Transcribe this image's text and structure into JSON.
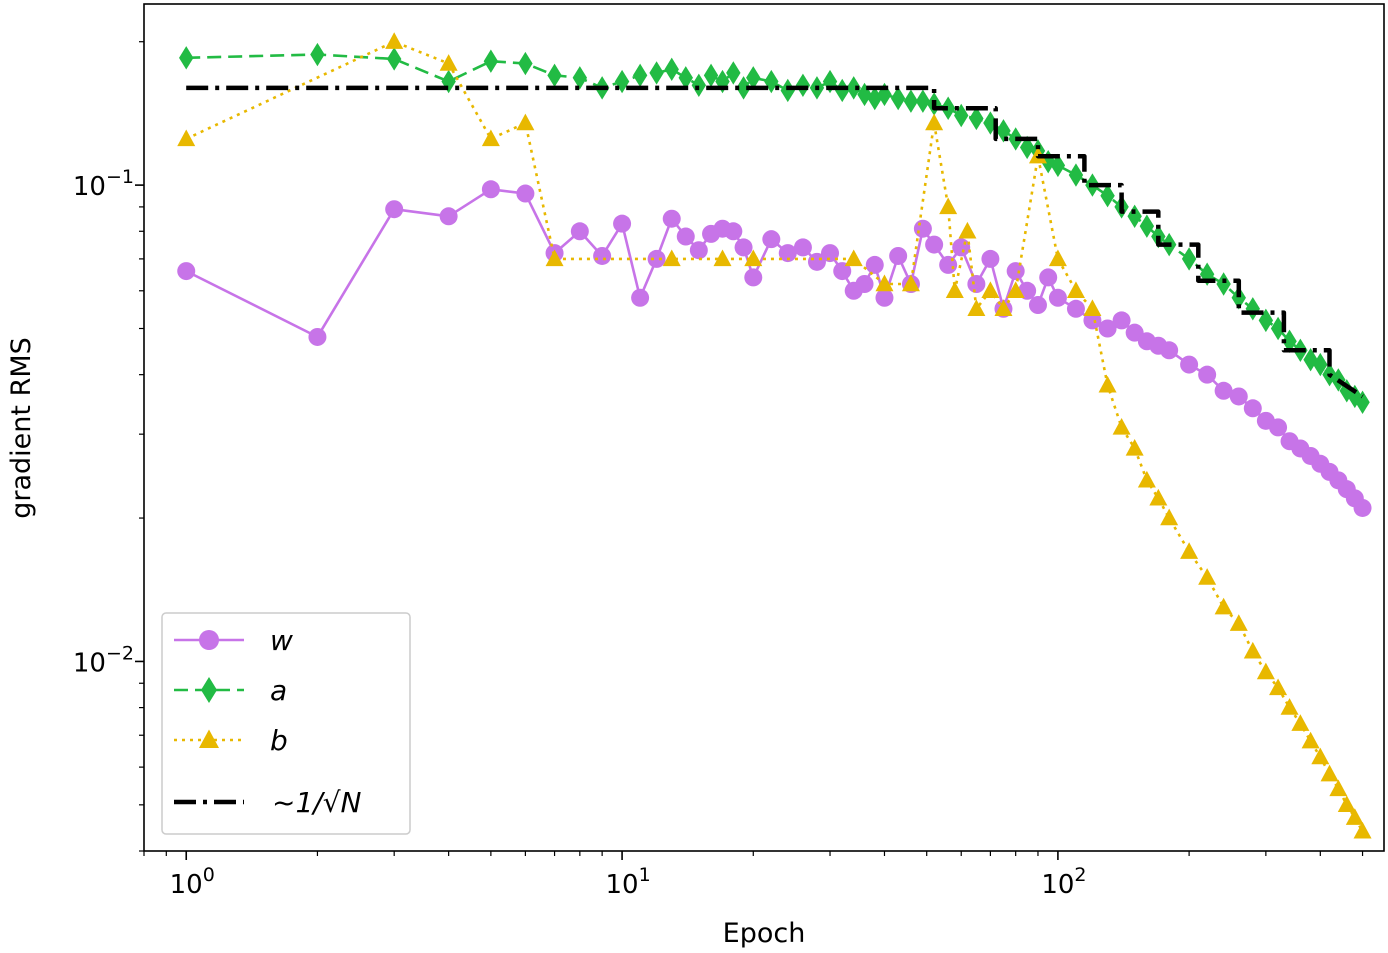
{
  "chart_data": {
    "type": "line",
    "xlabel": "Epoch",
    "ylabel": "gradient RMS",
    "xscale": "log",
    "yscale": "log",
    "xlim": [
      0.8,
      560
    ],
    "ylim": [
      0.004,
      0.24
    ],
    "x_ticks": [
      {
        "base": "10",
        "exp": "0",
        "value": 1
      },
      {
        "base": "10",
        "exp": "1",
        "value": 10
      },
      {
        "base": "10",
        "exp": "2",
        "value": 100
      }
    ],
    "y_ticks": [
      {
        "base": "10",
        "exp": "−2",
        "value": 0.01
      },
      {
        "base": "10",
        "exp": "−1",
        "value": 0.1
      }
    ],
    "legend": {
      "placement": "lower-left",
      "entries": [
        {
          "label": "w",
          "series": "w"
        },
        {
          "label": "a",
          "series": "a"
        },
        {
          "label": "b",
          "series": "b"
        },
        {
          "label": "~1/√N",
          "series": "ref"
        }
      ]
    },
    "series": [
      {
        "name": "w",
        "color": "#c774e8",
        "marker": "circle",
        "linestyle": "solid",
        "x": [
          1,
          2,
          3,
          4,
          5,
          6,
          7,
          8,
          9,
          10,
          11,
          12,
          13,
          14,
          15,
          16,
          17,
          18,
          19,
          20,
          22,
          24,
          26,
          28,
          30,
          32,
          34,
          36,
          38,
          40,
          43,
          46,
          49,
          52,
          56,
          60,
          65,
          70,
          75,
          80,
          85,
          90,
          95,
          100,
          110,
          120,
          130,
          140,
          150,
          160,
          170,
          180,
          200,
          220,
          240,
          260,
          280,
          300,
          320,
          340,
          360,
          380,
          400,
          420,
          440,
          460,
          480,
          500
        ],
        "y": [
          0.066,
          0.048,
          0.089,
          0.086,
          0.098,
          0.096,
          0.072,
          0.08,
          0.071,
          0.083,
          0.058,
          0.07,
          0.085,
          0.078,
          0.073,
          0.079,
          0.081,
          0.08,
          0.074,
          0.064,
          0.077,
          0.072,
          0.074,
          0.069,
          0.072,
          0.066,
          0.06,
          0.062,
          0.068,
          0.058,
          0.071,
          0.062,
          0.081,
          0.075,
          0.068,
          0.074,
          0.062,
          0.07,
          0.055,
          0.066,
          0.06,
          0.056,
          0.064,
          0.058,
          0.055,
          0.052,
          0.05,
          0.052,
          0.049,
          0.047,
          0.046,
          0.045,
          0.042,
          0.04,
          0.037,
          0.036,
          0.034,
          0.032,
          0.031,
          0.029,
          0.028,
          0.027,
          0.026,
          0.025,
          0.024,
          0.023,
          0.022,
          0.021
        ]
      },
      {
        "name": "a",
        "color": "#22bb44",
        "marker": "diamond",
        "linestyle": "dashed",
        "x": [
          1,
          2,
          3,
          4,
          5,
          6,
          7,
          8,
          9,
          10,
          11,
          12,
          13,
          14,
          15,
          16,
          17,
          18,
          19,
          20,
          22,
          24,
          26,
          28,
          30,
          32,
          34,
          36,
          38,
          40,
          43,
          46,
          49,
          52,
          56,
          60,
          65,
          70,
          75,
          80,
          85,
          90,
          95,
          100,
          110,
          120,
          130,
          140,
          150,
          160,
          170,
          180,
          200,
          220,
          240,
          260,
          280,
          300,
          320,
          340,
          360,
          380,
          400,
          420,
          440,
          460,
          480,
          500
        ],
        "y": [
          0.185,
          0.188,
          0.184,
          0.165,
          0.182,
          0.18,
          0.17,
          0.168,
          0.16,
          0.165,
          0.17,
          0.172,
          0.175,
          0.168,
          0.162,
          0.17,
          0.165,
          0.172,
          0.16,
          0.168,
          0.165,
          0.158,
          0.162,
          0.16,
          0.165,
          0.158,
          0.16,
          0.155,
          0.152,
          0.155,
          0.152,
          0.15,
          0.15,
          0.148,
          0.145,
          0.14,
          0.138,
          0.135,
          0.13,
          0.125,
          0.12,
          0.118,
          0.112,
          0.11,
          0.105,
          0.1,
          0.095,
          0.09,
          0.086,
          0.082,
          0.078,
          0.075,
          0.07,
          0.065,
          0.062,
          0.058,
          0.055,
          0.052,
          0.05,
          0.047,
          0.045,
          0.043,
          0.042,
          0.04,
          0.039,
          0.037,
          0.036,
          0.035
        ]
      },
      {
        "name": "b",
        "color": "#e8b800",
        "marker": "triangle",
        "linestyle": "dotted",
        "x": [
          1,
          3,
          4,
          5,
          6,
          7,
          13,
          17,
          20,
          34,
          40,
          46,
          52,
          56,
          58,
          62,
          65,
          70,
          75,
          80,
          90,
          100,
          110,
          120,
          130,
          140,
          150,
          160,
          170,
          180,
          200,
          220,
          240,
          260,
          280,
          300,
          320,
          340,
          360,
          380,
          400,
          420,
          440,
          460,
          480,
          500
        ],
        "y": [
          0.125,
          0.2,
          0.18,
          0.125,
          0.135,
          0.07,
          0.07,
          0.07,
          0.07,
          0.07,
          0.062,
          0.062,
          0.135,
          0.09,
          0.06,
          0.08,
          0.055,
          0.06,
          0.055,
          0.06,
          0.115,
          0.07,
          0.06,
          0.055,
          0.038,
          0.031,
          0.028,
          0.024,
          0.022,
          0.02,
          0.017,
          0.015,
          0.013,
          0.012,
          0.0105,
          0.0095,
          0.0088,
          0.008,
          0.0074,
          0.0068,
          0.0063,
          0.0058,
          0.0054,
          0.005,
          0.0047,
          0.0044
        ]
      },
      {
        "name": "~1/√N",
        "color": "#000000",
        "marker": "none",
        "linestyle": "dashdot",
        "x": [
          1,
          52,
          52,
          72,
          72,
          90,
          90,
          115,
          115,
          140,
          140,
          170,
          170,
          210,
          210,
          260,
          260,
          330,
          330,
          420,
          420,
          500
        ],
        "y": [
          0.16,
          0.16,
          0.145,
          0.145,
          0.125,
          0.125,
          0.115,
          0.115,
          0.1,
          0.1,
          0.088,
          0.088,
          0.075,
          0.075,
          0.063,
          0.063,
          0.054,
          0.054,
          0.045,
          0.045,
          0.04,
          0.036
        ]
      }
    ]
  }
}
